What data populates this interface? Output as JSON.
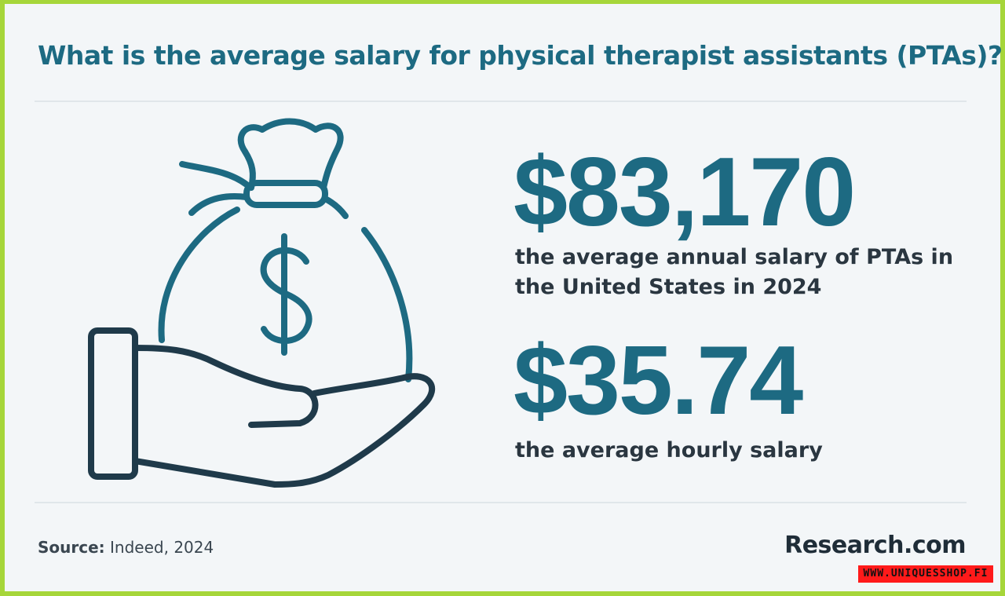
{
  "title": "What is the average salary for physical therapist assistants (PTAs)?",
  "stats": {
    "annual": {
      "value": "$83,170",
      "description": "the average annual salary of PTAs in the United States in 2024"
    },
    "hourly": {
      "value": "$35.74",
      "description": "the average hourly salary"
    }
  },
  "footer": {
    "source_label": "Source:",
    "source_text": " Indeed, 2024",
    "brand": "Research.com"
  },
  "watermark": "WWW.UNIQUESSHOP.FI",
  "icons": {
    "illustration": "hand-holding-money-bag-icon"
  },
  "colors": {
    "border": "#a6d63a",
    "background": "#f3f6f8",
    "accent": "#1d6a82",
    "dark": "#1f2d38"
  }
}
